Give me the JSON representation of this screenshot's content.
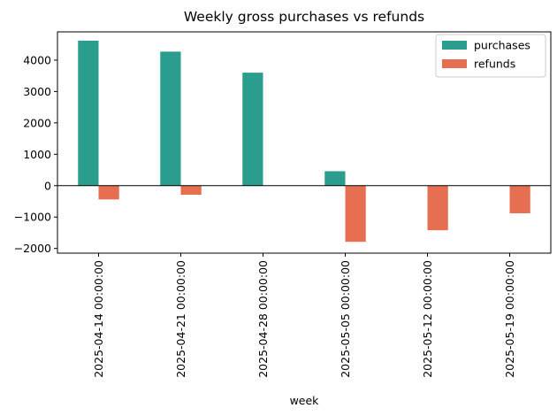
{
  "chart_data": {
    "type": "bar",
    "title": "Weekly gross purchases vs refunds",
    "xlabel": "week",
    "ylabel": "",
    "categories": [
      "2025-04-14 00:00:00",
      "2025-04-21 00:00:00",
      "2025-04-28 00:00:00",
      "2025-05-05 00:00:00",
      "2025-05-12 00:00:00",
      "2025-05-19 00:00:00"
    ],
    "series": [
      {
        "name": "purchases",
        "color": "#2a9d8f",
        "values": [
          4620,
          4270,
          3600,
          460,
          0,
          0
        ]
      },
      {
        "name": "refunds",
        "color": "#e76f51",
        "values": [
          -440,
          -290,
          0,
          -1790,
          -1420,
          -880
        ]
      }
    ],
    "ylim": [
      -2150,
      4900
    ],
    "yticks": [
      -2000,
      -1000,
      0,
      1000,
      2000,
      3000,
      4000
    ],
    "ytick_labels": [
      "−2000",
      "−1000",
      "0",
      "1000",
      "2000",
      "3000",
      "4000"
    ],
    "zero_line": true,
    "grid": false,
    "legend_position": "top-right"
  }
}
